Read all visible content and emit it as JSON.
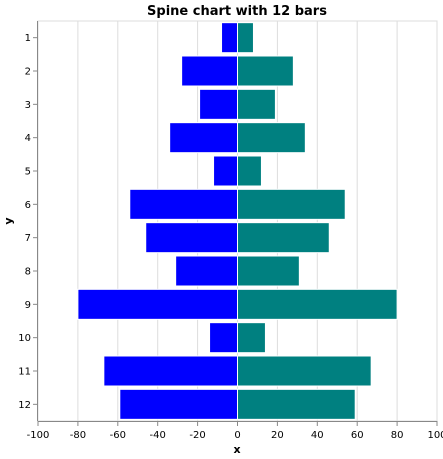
{
  "chart_data": {
    "type": "bar",
    "orientation": "horizontal",
    "title": "Spine chart with 12 bars",
    "xlabel": "x",
    "ylabel": "y",
    "xlim": [
      -100,
      100
    ],
    "x_ticks": [
      "-100",
      "-80",
      "-60",
      "-40",
      "-20",
      "0",
      "20",
      "40",
      "60",
      "80",
      "100"
    ],
    "categories": [
      "1",
      "2",
      "3",
      "4",
      "5",
      "6",
      "7",
      "8",
      "9",
      "10",
      "11",
      "12"
    ],
    "series": [
      {
        "color": "#0000ff",
        "values": [
          -8,
          -28,
          -19,
          -34,
          -12,
          -54,
          -46,
          -31,
          -80,
          -14,
          -67,
          -59
        ]
      },
      {
        "color": "#008080",
        "values": [
          8,
          28,
          19,
          34,
          12,
          54,
          46,
          31,
          80,
          14,
          67,
          59
        ]
      }
    ],
    "grid": true
  }
}
